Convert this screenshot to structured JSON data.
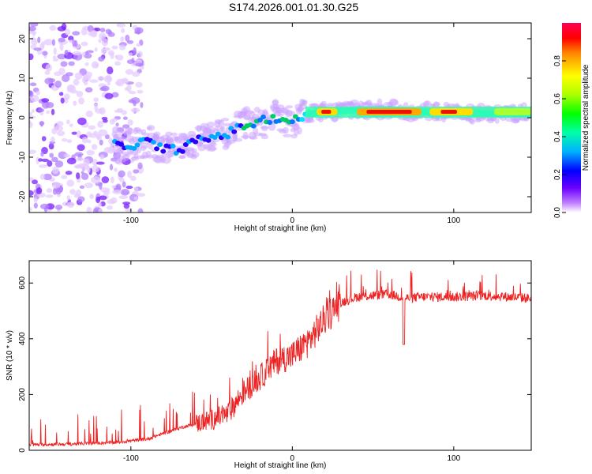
{
  "title": "S174.2026.001.01.30.G25",
  "chart_data": [
    {
      "type": "heatmap",
      "name": "spectrogram",
      "xlabel": "Height of straight line (km)",
      "ylabel": "Frequency (Hz)",
      "xlim": [
        -163,
        148
      ],
      "ylim": [
        -24,
        24
      ],
      "xticks": [
        -100,
        0,
        100
      ],
      "yticks": [
        -20,
        -10,
        0,
        10,
        20
      ],
      "ridge": {
        "x": [
          -110,
          -100,
          -90,
          -80,
          -70,
          -60,
          -50,
          -40,
          -30,
          -20,
          -10,
          0,
          10,
          20,
          40,
          60,
          80,
          100,
          120,
          148
        ],
        "frequency": [
          -7,
          -7,
          -6,
          -8,
          -8,
          -6,
          -5,
          -4,
          -2,
          -1,
          0,
          -1,
          1,
          1.5,
          2,
          2,
          1.5,
          1.5,
          1,
          1
        ]
      },
      "colorbar": {
        "label": "Normalized spectral amplitude",
        "range": [
          0,
          1
        ],
        "ticks": [
          "0.0",
          "0.2",
          "0.4",
          "0.6",
          "0.8"
        ],
        "colors": [
          "#ffffff",
          "#9933ff",
          "#3300ff",
          "#00ccff",
          "#00ff66",
          "#aaff00",
          "#ffff00",
          "#ff9900",
          "#ff0000",
          "#ff0066"
        ]
      }
    },
    {
      "type": "line",
      "name": "snr",
      "xlabel": "Height of straight line (km)",
      "ylabel": "SNR (10 * v/v)",
      "xlim": [
        -163,
        148
      ],
      "ylim": [
        0,
        680
      ],
      "xticks": [
        -100,
        0,
        100
      ],
      "yticks": [
        0,
        200,
        400,
        600
      ],
      "color": "#ee2222",
      "trend": {
        "x": [
          -163,
          -140,
          -110,
          -90,
          -70,
          -50,
          -40,
          -30,
          -20,
          -10,
          0,
          10,
          20,
          30,
          40,
          60,
          70,
          80,
          100,
          120,
          148
        ],
        "y": [
          20,
          22,
          28,
          40,
          80,
          110,
          130,
          210,
          260,
          320,
          340,
          390,
          470,
          530,
          550,
          560,
          545,
          550,
          550,
          555,
          545
        ]
      },
      "dips": [
        {
          "x": 69,
          "y": 380
        }
      ]
    }
  ]
}
